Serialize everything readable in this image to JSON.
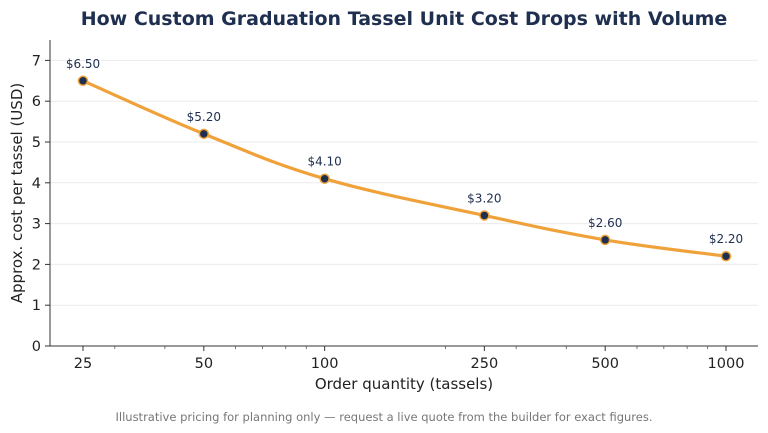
{
  "chart_data": {
    "type": "line",
    "title": "How Custom Graduation Tassel Unit Cost Drops with Volume",
    "xlabel": "Order quantity (tassels)",
    "ylabel": "Approx. cost per tassel (USD)",
    "x_scale": "log",
    "x": [
      25,
      50,
      100,
      250,
      500,
      1000
    ],
    "y": [
      6.5,
      5.2,
      4.1,
      3.2,
      2.6,
      2.2
    ],
    "data_labels": [
      "$6.50",
      "$5.20",
      "$4.10",
      "$3.20",
      "$2.60",
      "$2.20"
    ],
    "xticks": [
      "25",
      "50",
      "100",
      "250",
      "500",
      "1000"
    ],
    "yticks": [
      "0",
      "1",
      "2",
      "3",
      "4",
      "5",
      "6",
      "7"
    ],
    "ylim": [
      0,
      7.5
    ],
    "grid": "horizontal",
    "line_color": "#f0a23a",
    "marker_color": "#1f2f4f",
    "footnote": "Illustrative pricing for planning only — request a live quote from the builder for exact figures."
  }
}
